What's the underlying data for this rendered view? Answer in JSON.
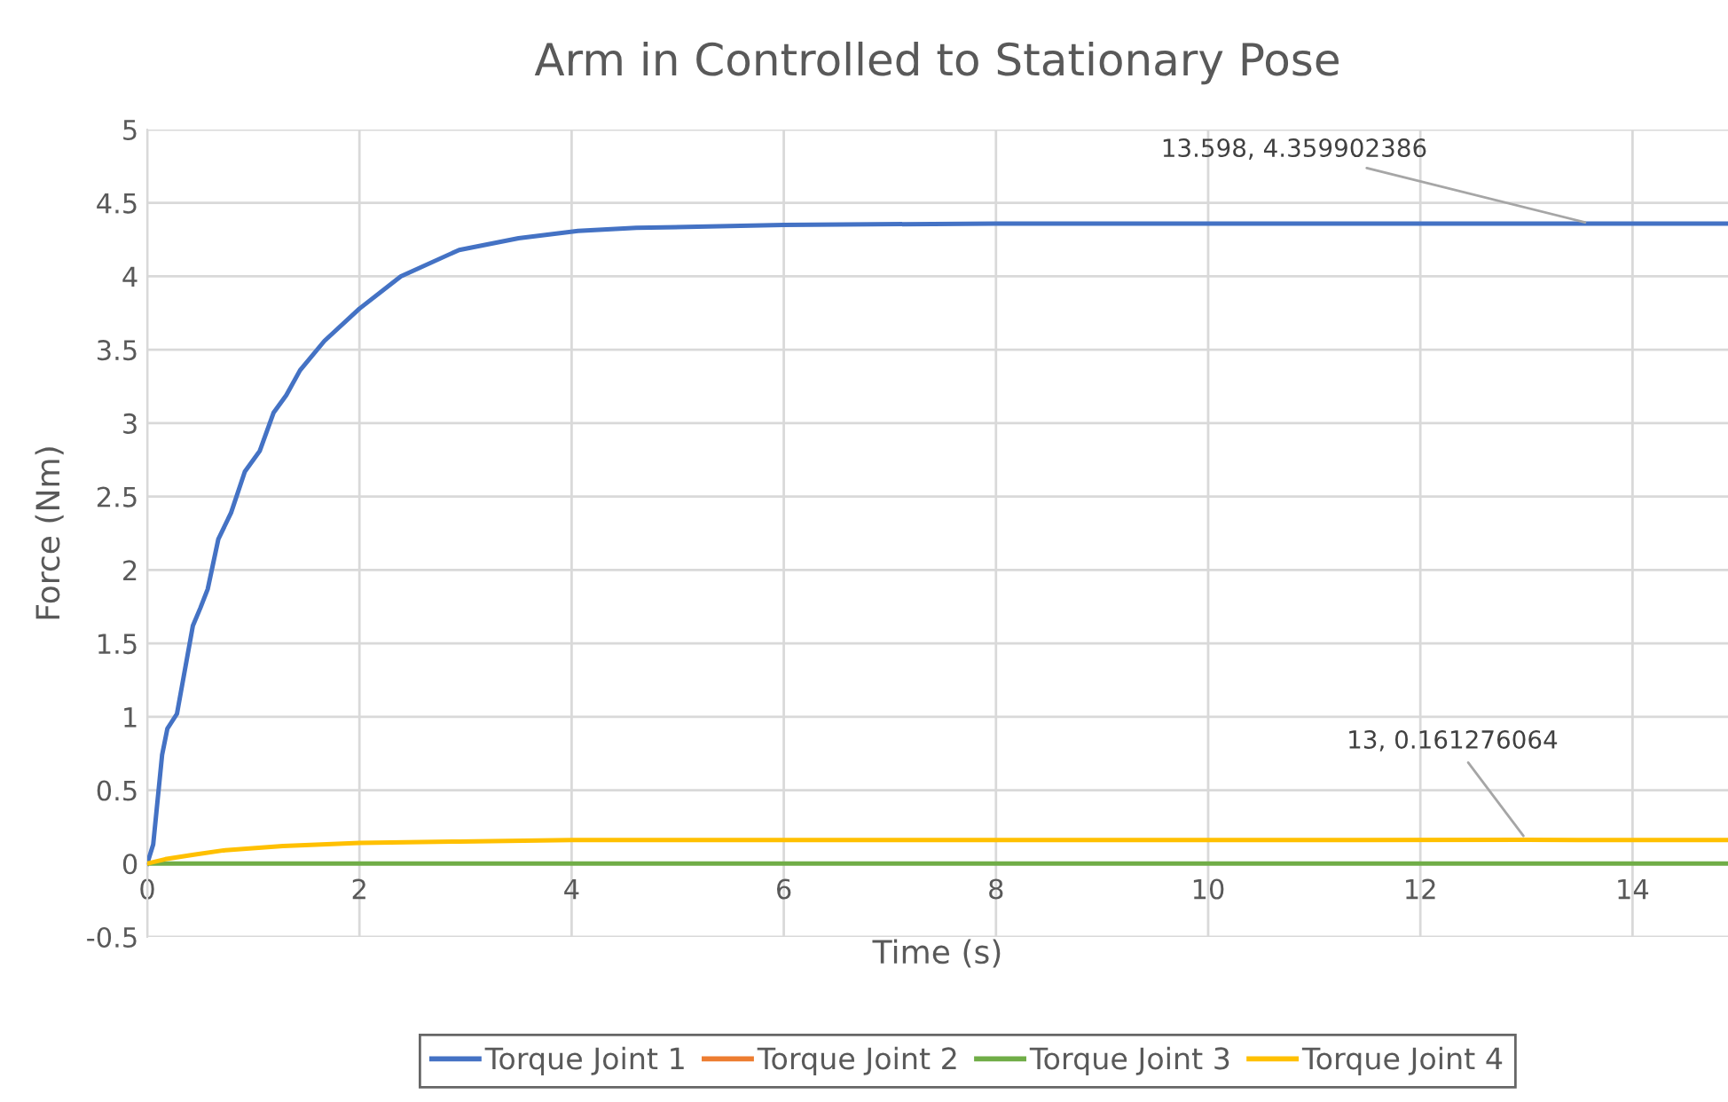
{
  "chart_data": {
    "type": "line",
    "title": "Arm in Controlled to Stationary Pose",
    "xlabel": "Time (s)",
    "ylabel": "Force (Nm)",
    "xlim": [
      0,
      14.9
    ],
    "xticks": [
      0,
      2,
      4,
      6,
      8,
      10,
      12,
      14
    ],
    "ylim": [
      -0.5,
      5
    ],
    "yticks": [
      -0.5,
      0,
      0.5,
      1,
      1.5,
      2,
      2.5,
      3,
      3.5,
      4,
      4.5,
      5
    ],
    "grid": true,
    "legend": "bottom",
    "marker": "none",
    "line_style": "solid",
    "series": [
      {
        "name": "Torque Joint 1",
        "color": "#4472c4",
        "x": [
          0,
          0.056,
          0.14,
          0.19,
          0.28,
          0.33,
          0.43,
          0.5,
          0.57,
          0.67,
          0.79,
          0.92,
          1.06,
          1.19,
          1.31,
          1.44,
          1.67,
          2.0,
          2.39,
          2.94,
          3.5,
          4.06,
          4.61,
          6,
          8,
          10,
          12,
          13.598,
          14.9
        ],
        "values": [
          0,
          0.13,
          0.74,
          0.92,
          1.02,
          1.22,
          1.62,
          1.74,
          1.87,
          2.21,
          2.39,
          2.67,
          2.81,
          3.07,
          3.19,
          3.36,
          3.56,
          3.78,
          4.0,
          4.18,
          4.26,
          4.31,
          4.33,
          4.35,
          4.36,
          4.36,
          4.36,
          4.359902386,
          4.36
        ]
      },
      {
        "name": "Torque Joint 2",
        "color": "#ed7d31"
      },
      {
        "name": "Torque Joint 3",
        "color": "#70ad47",
        "x": [
          0,
          14.9
        ],
        "values": [
          0,
          0
        ]
      },
      {
        "name": "Torque Joint 4",
        "color": "#ffc000",
        "x": [
          0,
          0.17,
          0.44,
          0.72,
          1.28,
          2.0,
          2.94,
          4,
          6,
          13,
          14.9
        ],
        "values": [
          0,
          0.03,
          0.06,
          0.09,
          0.12,
          0.14,
          0.15,
          0.16,
          0.16,
          0.161276064,
          0.16
        ]
      }
    ],
    "annotations": [
      {
        "text": "13.598, 4.359902386",
        "x": 13.598,
        "y": 4.359902386
      },
      {
        "text": "13, 0.161276064",
        "x": 13,
        "y": 0.161276064
      }
    ]
  }
}
